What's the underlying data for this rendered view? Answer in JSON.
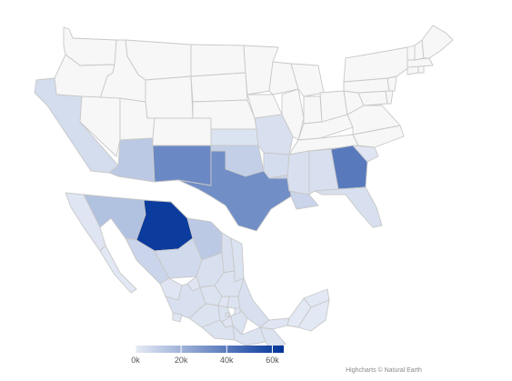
{
  "map": {
    "value_unit_suffix": "k",
    "missing_value_color": "#f7f7f7",
    "border_color": "#c8c8c8",
    "regions": [
      {
        "id": "us-wa",
        "name": "Washington",
        "value": 0
      },
      {
        "id": "us-or",
        "name": "Oregon",
        "value": 0
      },
      {
        "id": "us-ca",
        "name": "California",
        "value": 5
      },
      {
        "id": "us-id",
        "name": "Idaho",
        "value": 0
      },
      {
        "id": "us-nv",
        "name": "Nevada",
        "value": 0
      },
      {
        "id": "us-mt",
        "name": "Montana",
        "value": 0
      },
      {
        "id": "us-wy",
        "name": "Wyoming",
        "value": 0
      },
      {
        "id": "us-ut",
        "name": "Utah",
        "value": 0
      },
      {
        "id": "us-co",
        "name": "Colorado",
        "value": 0
      },
      {
        "id": "us-az",
        "name": "Arizona",
        "value": 12
      },
      {
        "id": "us-nm",
        "name": "New Mexico",
        "value": 35
      },
      {
        "id": "us-nd",
        "name": "North Dakota",
        "value": 0
      },
      {
        "id": "us-sd",
        "name": "South Dakota",
        "value": 0
      },
      {
        "id": "us-ne",
        "name": "Nebraska",
        "value": 0
      },
      {
        "id": "us-ks",
        "name": "Kansas",
        "value": 3
      },
      {
        "id": "us-ok",
        "name": "Oklahoma",
        "value": 10
      },
      {
        "id": "us-tx",
        "name": "Texas",
        "value": 33
      },
      {
        "id": "us-mn",
        "name": "Minnesota",
        "value": 0
      },
      {
        "id": "us-ia",
        "name": "Iowa",
        "value": 0
      },
      {
        "id": "us-mo",
        "name": "Missouri",
        "value": 4
      },
      {
        "id": "us-ar",
        "name": "Arkansas",
        "value": 5
      },
      {
        "id": "us-la",
        "name": "Louisiana",
        "value": 8
      },
      {
        "id": "us-wi",
        "name": "Wisconsin",
        "value": 0
      },
      {
        "id": "us-il",
        "name": "Illinois",
        "value": 0
      },
      {
        "id": "us-mi",
        "name": "Michigan",
        "value": 0
      },
      {
        "id": "us-in",
        "name": "Indiana",
        "value": 0
      },
      {
        "id": "us-oh",
        "name": "Ohio",
        "value": 0
      },
      {
        "id": "us-ky",
        "name": "Kentucky",
        "value": 0
      },
      {
        "id": "us-tn",
        "name": "Tennessee",
        "value": 0
      },
      {
        "id": "us-ms",
        "name": "Mississippi",
        "value": 4
      },
      {
        "id": "us-al",
        "name": "Alabama",
        "value": 4
      },
      {
        "id": "us-ga",
        "name": "Georgia",
        "value": 40
      },
      {
        "id": "us-fl",
        "name": "Florida",
        "value": 4
      },
      {
        "id": "us-sc",
        "name": "South Carolina",
        "value": 2
      },
      {
        "id": "us-nc",
        "name": "North Carolina",
        "value": 0
      },
      {
        "id": "us-va",
        "name": "Virginia",
        "value": 0
      },
      {
        "id": "us-wv",
        "name": "West Virginia",
        "value": 0
      },
      {
        "id": "us-md",
        "name": "Maryland",
        "value": 0
      },
      {
        "id": "us-de",
        "name": "Delaware",
        "value": 0
      },
      {
        "id": "us-pa",
        "name": "Pennsylvania",
        "value": 0
      },
      {
        "id": "us-nj",
        "name": "New Jersey",
        "value": 0
      },
      {
        "id": "us-ny",
        "name": "New York",
        "value": 0
      },
      {
        "id": "us-ct",
        "name": "Connecticut",
        "value": 0
      },
      {
        "id": "us-ri",
        "name": "Rhode Island",
        "value": 0
      },
      {
        "id": "us-ma",
        "name": "Massachusetts",
        "value": 0
      },
      {
        "id": "us-vt",
        "name": "Vermont",
        "value": 0
      },
      {
        "id": "us-nh",
        "name": "New Hampshire",
        "value": 0
      },
      {
        "id": "us-me",
        "name": "Maine",
        "value": 0
      },
      {
        "id": "mx-bc",
        "name": "Baja California",
        "value": 2
      },
      {
        "id": "mx-bs",
        "name": "Baja California Sur",
        "value": 1
      },
      {
        "id": "mx-so",
        "name": "Sonora",
        "value": 15
      },
      {
        "id": "mx-ch",
        "name": "Chihuahua",
        "value": 62
      },
      {
        "id": "mx-co",
        "name": "Coahuila",
        "value": 12
      },
      {
        "id": "mx-nl",
        "name": "Nuevo León",
        "value": 4
      },
      {
        "id": "mx-tm",
        "name": "Tamaulipas",
        "value": 3
      },
      {
        "id": "mx-si",
        "name": "Sinaloa",
        "value": 8
      },
      {
        "id": "mx-dg",
        "name": "Durango",
        "value": 6
      },
      {
        "id": "mx-zt",
        "name": "Zacatecas",
        "value": 4
      },
      {
        "id": "mx-sl",
        "name": "San Luis Potosí",
        "value": 3
      },
      {
        "id": "mx-na",
        "name": "Nayarit",
        "value": 2
      },
      {
        "id": "mx-ag",
        "name": "Aguascalientes",
        "value": 2
      },
      {
        "id": "mx-ja",
        "name": "Jalisco",
        "value": 4
      },
      {
        "id": "mx-gj",
        "name": "Guanajuato",
        "value": 3
      },
      {
        "id": "mx-qt",
        "name": "Querétaro",
        "value": 2
      },
      {
        "id": "mx-hg",
        "name": "Hidalgo",
        "value": 3
      },
      {
        "id": "mx-cl",
        "name": "Colima",
        "value": 2
      },
      {
        "id": "mx-mi",
        "name": "Michoacán",
        "value": 3
      },
      {
        "id": "mx-em",
        "name": "México",
        "value": 3
      },
      {
        "id": "mx-df",
        "name": "Ciudad de México",
        "value": 3
      },
      {
        "id": "mx-mo",
        "name": "Morelos",
        "value": 2
      },
      {
        "id": "mx-pu",
        "name": "Puebla",
        "value": 3
      },
      {
        "id": "mx-tl",
        "name": "Tlaxcala",
        "value": 2
      },
      {
        "id": "mx-ve",
        "name": "Veracruz",
        "value": 4
      },
      {
        "id": "mx-gr",
        "name": "Guerrero",
        "value": 3
      },
      {
        "id": "mx-oa",
        "name": "Oaxaca",
        "value": 3
      },
      {
        "id": "mx-cs",
        "name": "Chiapas",
        "value": 3
      },
      {
        "id": "mx-tb",
        "name": "Tabasco",
        "value": 2
      },
      {
        "id": "mx-cm",
        "name": "Campeche",
        "value": 1
      },
      {
        "id": "mx-yu",
        "name": "Yucatán",
        "value": 1
      },
      {
        "id": "mx-qr",
        "name": "Quintana Roo",
        "value": 1
      }
    ]
  },
  "color_axis": {
    "min": 0,
    "max": 65,
    "min_color": "#e6ebf5",
    "max_color": "#003399",
    "tick_values": [
      0,
      20,
      40,
      60
    ],
    "tick_labels": [
      "0k",
      "20k",
      "40k",
      "60k"
    ]
  },
  "credits": {
    "text": "Highcharts © Natural Earth"
  }
}
